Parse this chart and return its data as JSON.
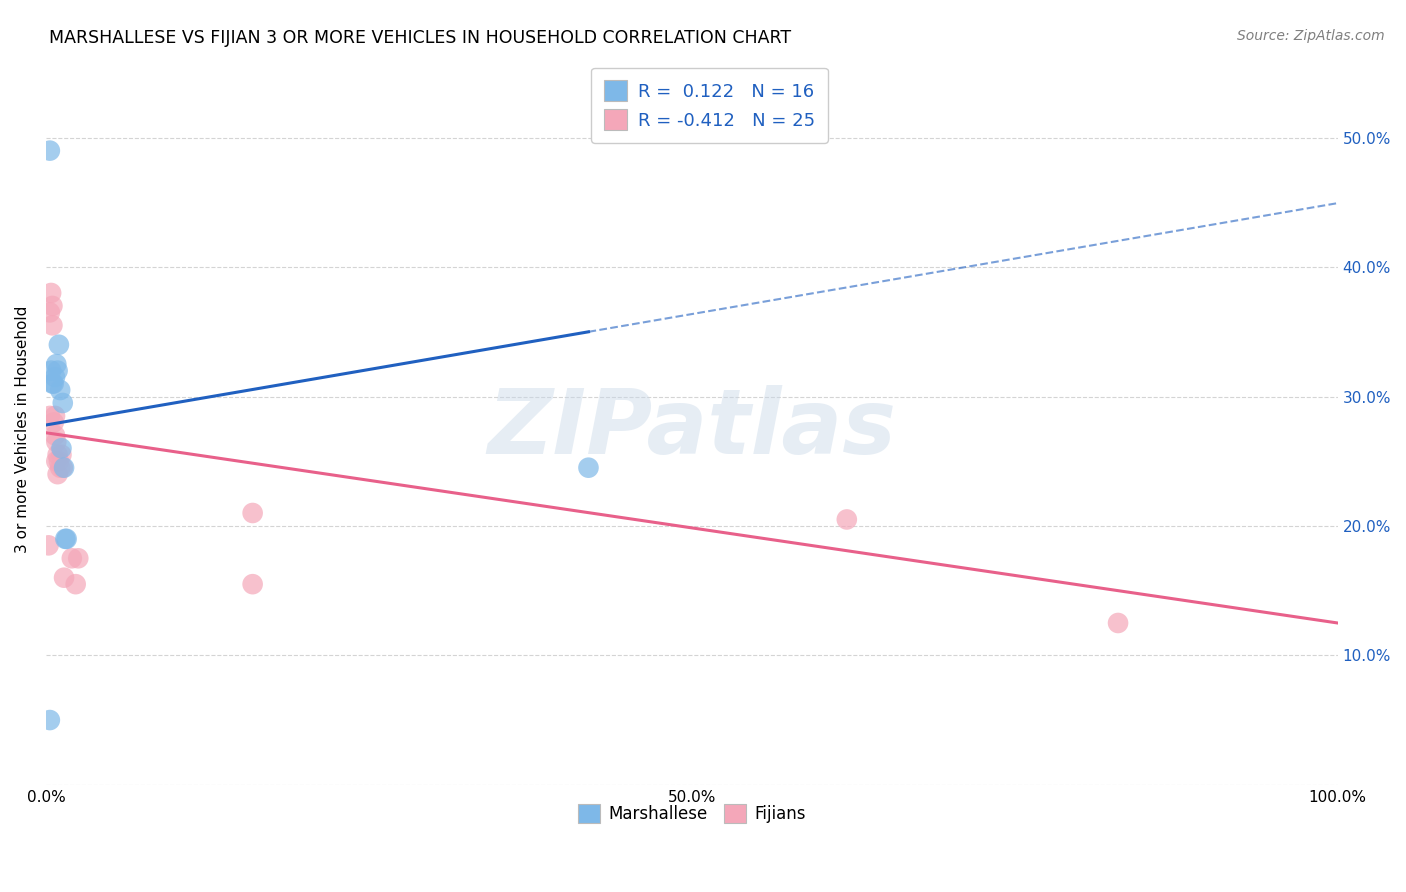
{
  "title": "MARSHALLESE VS FIJIAN 3 OR MORE VEHICLES IN HOUSEHOLD CORRELATION CHART",
  "source": "Source: ZipAtlas.com",
  "ylabel": "3 or more Vehicles in Household",
  "xlim": [
    0.0,
    1.0
  ],
  "ylim": [
    0.0,
    0.55
  ],
  "x_ticks": [
    0.0,
    0.1,
    0.2,
    0.3,
    0.4,
    0.5,
    0.6,
    0.7,
    0.8,
    0.9,
    1.0
  ],
  "x_tick_labels": [
    "0.0%",
    "",
    "",
    "",
    "",
    "",
    "",
    "",
    "",
    "",
    "100.0%"
  ],
  "y_ticks": [
    0.0,
    0.1,
    0.2,
    0.3,
    0.4,
    0.5
  ],
  "y_tick_labels_right": [
    "",
    "10.0%",
    "20.0%",
    "30.0%",
    "40.0%",
    "50.0%"
  ],
  "watermark": "ZIPatlas",
  "marshallese_color": "#7EB8E8",
  "fijian_color": "#F4A7B9",
  "marshallese_line_color": "#2060C0",
  "fijian_line_color": "#E8608A",
  "marshallese_R": 0.122,
  "marshallese_N": 16,
  "fijian_R": -0.412,
  "fijian_N": 25,
  "marshallese_x": [
    0.003,
    0.004,
    0.005,
    0.006,
    0.007,
    0.008,
    0.009,
    0.01,
    0.011,
    0.012,
    0.013,
    0.014,
    0.015,
    0.016,
    0.42,
    0.003
  ],
  "marshallese_y": [
    0.49,
    0.32,
    0.31,
    0.31,
    0.315,
    0.325,
    0.32,
    0.34,
    0.305,
    0.26,
    0.295,
    0.245,
    0.19,
    0.19,
    0.245,
    0.05
  ],
  "fijian_x": [
    0.002,
    0.003,
    0.003,
    0.004,
    0.005,
    0.005,
    0.006,
    0.007,
    0.007,
    0.008,
    0.008,
    0.009,
    0.009,
    0.01,
    0.011,
    0.012,
    0.013,
    0.014,
    0.02,
    0.023,
    0.025,
    0.16,
    0.16,
    0.62,
    0.83
  ],
  "fijian_y": [
    0.185,
    0.285,
    0.365,
    0.38,
    0.355,
    0.37,
    0.28,
    0.27,
    0.285,
    0.25,
    0.265,
    0.255,
    0.24,
    0.25,
    0.245,
    0.255,
    0.245,
    0.16,
    0.175,
    0.155,
    0.175,
    0.21,
    0.155,
    0.205,
    0.125
  ],
  "background_color": "#FFFFFF",
  "grid_color": "#D0D0D0",
  "legend_color": "#2060C0",
  "marsh_line_x_solid_end": 0.42,
  "fij_line_x_solid_end": 1.0,
  "marsh_line_y0": 0.278,
  "marsh_line_y1": 0.35,
  "fij_line_y0": 0.272,
  "fij_line_y1": 0.125
}
